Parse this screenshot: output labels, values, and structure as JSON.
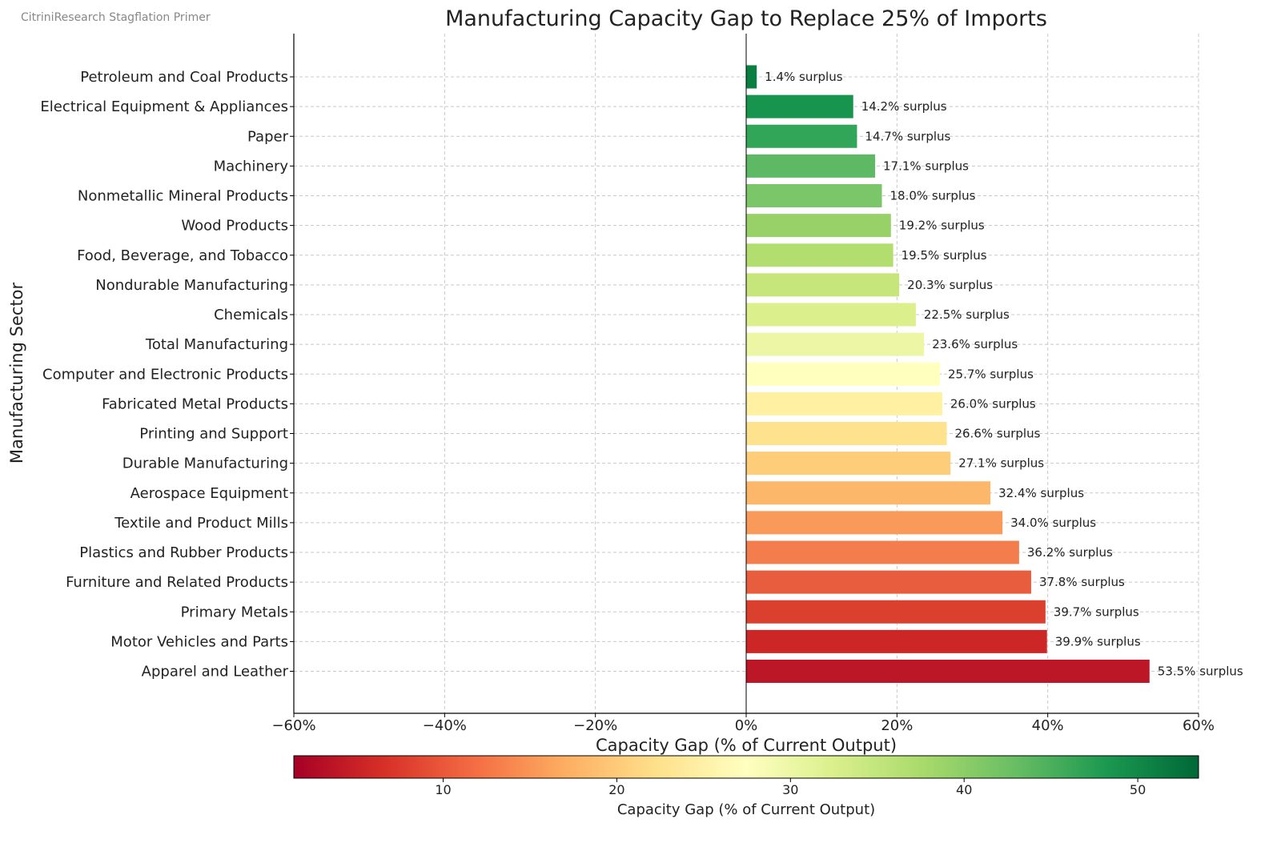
{
  "source_note": "CitriniResearch Stagflation Primer",
  "chart_data": {
    "type": "bar",
    "orientation": "horizontal",
    "title": "Manufacturing Capacity Gap to Replace 25% of Imports",
    "xlabel": "Capacity Gap (% of Current Output)",
    "ylabel": "Manufacturing Sector",
    "xlim": [
      -60,
      60
    ],
    "x_ticks": [
      -60,
      -40,
      -20,
      0,
      20,
      40,
      60
    ],
    "x_tick_labels": [
      "−60%",
      "−40%",
      "−20%",
      "0%",
      "20%",
      "40%",
      "60%"
    ],
    "grid": true,
    "categories": [
      "Petroleum and Coal Products",
      "Electrical Equipment & Appliances",
      "Paper",
      "Machinery",
      "Nonmetallic Mineral Products",
      "Wood Products",
      "Food, Beverage, and Tobacco",
      "Nondurable Manufacturing",
      "Chemicals",
      "Total Manufacturing",
      "Computer and Electronic Products",
      "Fabricated Metal Products",
      "Printing and Support",
      "Durable Manufacturing",
      "Aerospace Equipment",
      "Textile and Product Mills",
      "Plastics and Rubber Products",
      "Furniture and Related Products",
      "Primary Metals",
      "Motor Vehicles and Parts",
      "Apparel and Leather"
    ],
    "values": [
      1.4,
      14.2,
      14.7,
      17.1,
      18.0,
      19.2,
      19.5,
      20.3,
      22.5,
      23.6,
      25.7,
      26.0,
      26.6,
      27.1,
      32.4,
      34.0,
      36.2,
      37.8,
      39.7,
      39.9,
      53.5
    ],
    "data_labels": [
      "1.4% surplus",
      "14.2% surplus",
      "14.7% surplus",
      "17.1% surplus",
      "18.0% surplus",
      "19.2% surplus",
      "19.5% surplus",
      "20.3% surplus",
      "22.5% surplus",
      "23.6% surplus",
      "25.7% surplus",
      "26.0% surplus",
      "26.6% surplus",
      "27.1% surplus",
      "32.4% surplus",
      "34.0% surplus",
      "36.2% surplus",
      "37.8% surplus",
      "39.7% surplus",
      "39.9% surplus",
      "53.5% surplus"
    ],
    "bar_colors": [
      "#0a7f42",
      "#17944e",
      "#32a658",
      "#5db963",
      "#7cc66a",
      "#98d168",
      "#b2dd6f",
      "#c6e67c",
      "#dbef8c",
      "#edf6a4",
      "#ffffbe",
      "#fff0a2",
      "#fee28e",
      "#fdcd79",
      "#fdb76b",
      "#f9995a",
      "#f47d4e",
      "#e95d3f",
      "#db3f2e",
      "#cc2627",
      "#bb1727"
    ],
    "colorbar": {
      "label": "Capacity Gap (% of Current Output)",
      "range": [
        1.4,
        53.5
      ],
      "ticks": [
        10,
        20,
        30,
        40,
        50
      ],
      "tick_labels": [
        "10",
        "20",
        "30",
        "40",
        "50"
      ],
      "colors": [
        "#a50026",
        "#d73027",
        "#f46d43",
        "#fdae61",
        "#fee08b",
        "#ffffbf",
        "#d9ef8b",
        "#a6d96a",
        "#66bd63",
        "#1a9850",
        "#006837"
      ]
    }
  }
}
